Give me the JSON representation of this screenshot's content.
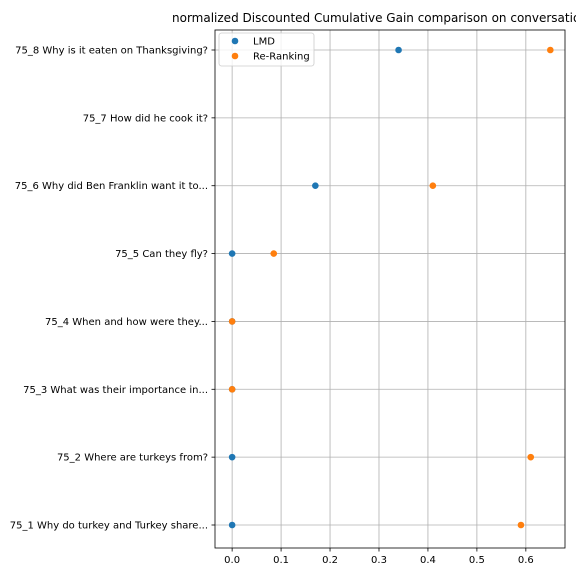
{
  "chart_data": {
    "type": "scatter",
    "title": "normalized Discounted Cumulative Gain comparison on conversatio",
    "xlabel": "",
    "ylabel": "",
    "xlim": [
      -0.035,
      0.68
    ],
    "x_ticks": [
      "0.0",
      "0.1",
      "0.2",
      "0.3",
      "0.4",
      "0.5",
      "0.6"
    ],
    "categories": [
      "75_1 Why do turkey and Turkey share...",
      "75_2 Where are turkeys from?",
      "75_3 What was their importance in...",
      "75_4 When and how were they...",
      "75_5 Can they fly?",
      "75_6 Why did Ben Franklin want it to...",
      "75_7 How did he cook it?",
      "75_8 Why is it eaten on Thanksgiving?"
    ],
    "grid": true,
    "legend_position": "top-left",
    "series": [
      {
        "name": "LMD",
        "color": "#1f77b4",
        "values": [
          0.0,
          0.0,
          0.0,
          0.0,
          0.0,
          0.17,
          null,
          0.34
        ]
      },
      {
        "name": "Re-Ranking",
        "color": "#ff7f0e",
        "values": [
          0.59,
          0.61,
          0.0,
          0.0,
          0.085,
          0.41,
          null,
          0.65
        ]
      }
    ]
  }
}
